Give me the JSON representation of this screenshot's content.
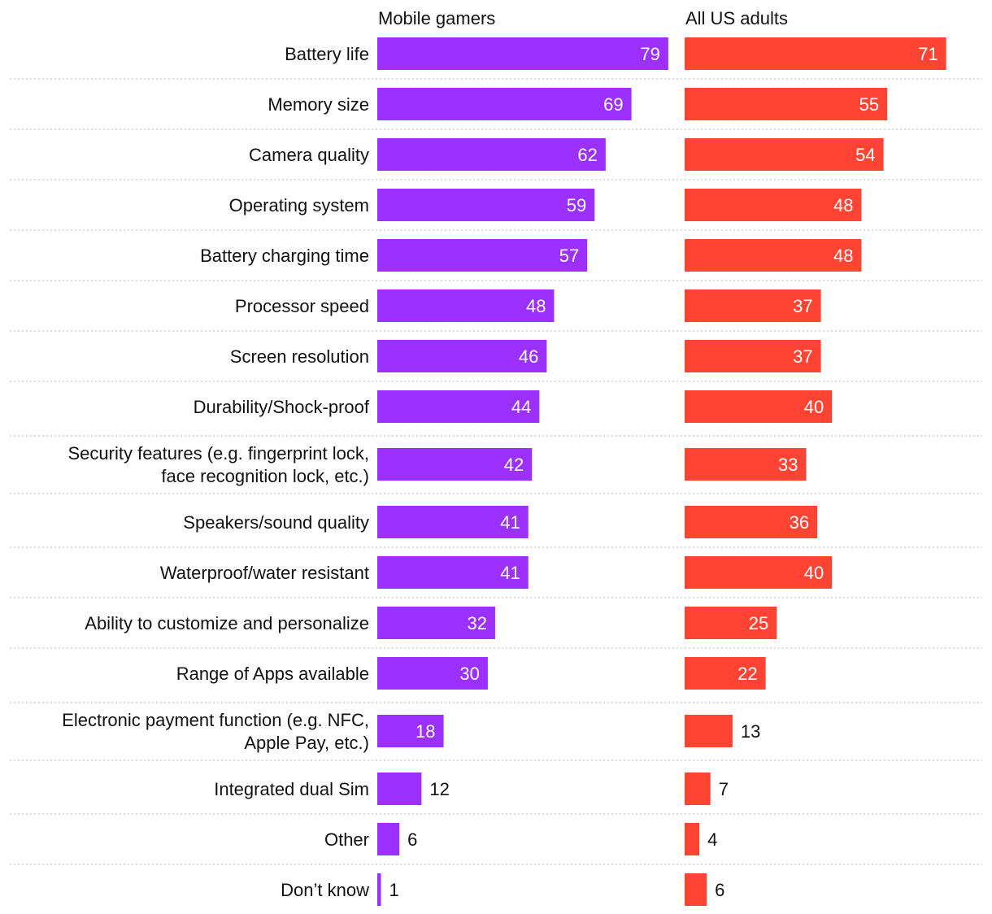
{
  "chart_data": {
    "type": "bar",
    "orientation": "horizontal",
    "categories": [
      "Battery life",
      "Memory size",
      "Camera quality",
      "Operating system",
      "Battery charging time",
      "Processor speed",
      "Screen resolution",
      "Durability/Shock-proof",
      "Security features (e.g. fingerprint lock, face recognition lock, etc.)",
      "Speakers/sound quality",
      "Waterproof/water resistant",
      "Ability to customize and personalize",
      "Range of Apps available",
      "Electronic payment function (e.g. NFC, Apple Pay, etc.)",
      "Integrated dual Sim",
      "Other",
      "Don’t know"
    ],
    "category_lines": [
      [
        "Battery life"
      ],
      [
        "Memory size"
      ],
      [
        "Camera quality"
      ],
      [
        "Operating system"
      ],
      [
        "Battery charging time"
      ],
      [
        "Processor speed"
      ],
      [
        "Screen resolution"
      ],
      [
        "Durability/Shock-proof"
      ],
      [
        "Security features (e.g. fingerprint lock,",
        "face recognition lock, etc.)"
      ],
      [
        "Speakers/sound quality"
      ],
      [
        "Waterproof/water resistant"
      ],
      [
        "Ability to customize and personalize"
      ],
      [
        "Range of Apps available"
      ],
      [
        "Electronic payment function (e.g. NFC,",
        "Apple Pay, etc.)"
      ],
      [
        "Integrated dual Sim"
      ],
      [
        "Other"
      ],
      [
        "Don’t know"
      ]
    ],
    "series": [
      {
        "name": "Mobile gamers",
        "color": "#9b30ff",
        "values": [
          79,
          69,
          62,
          59,
          57,
          48,
          46,
          44,
          42,
          41,
          41,
          32,
          30,
          18,
          12,
          6,
          1
        ]
      },
      {
        "name": "All US adults",
        "color": "#ff4433",
        "values": [
          71,
          55,
          54,
          48,
          48,
          37,
          37,
          40,
          33,
          36,
          40,
          25,
          22,
          13,
          7,
          4,
          6
        ]
      }
    ],
    "xlim": [
      0,
      80
    ],
    "grid": false,
    "legend": "panel headers at top",
    "separators": "dotted lines between rows"
  }
}
